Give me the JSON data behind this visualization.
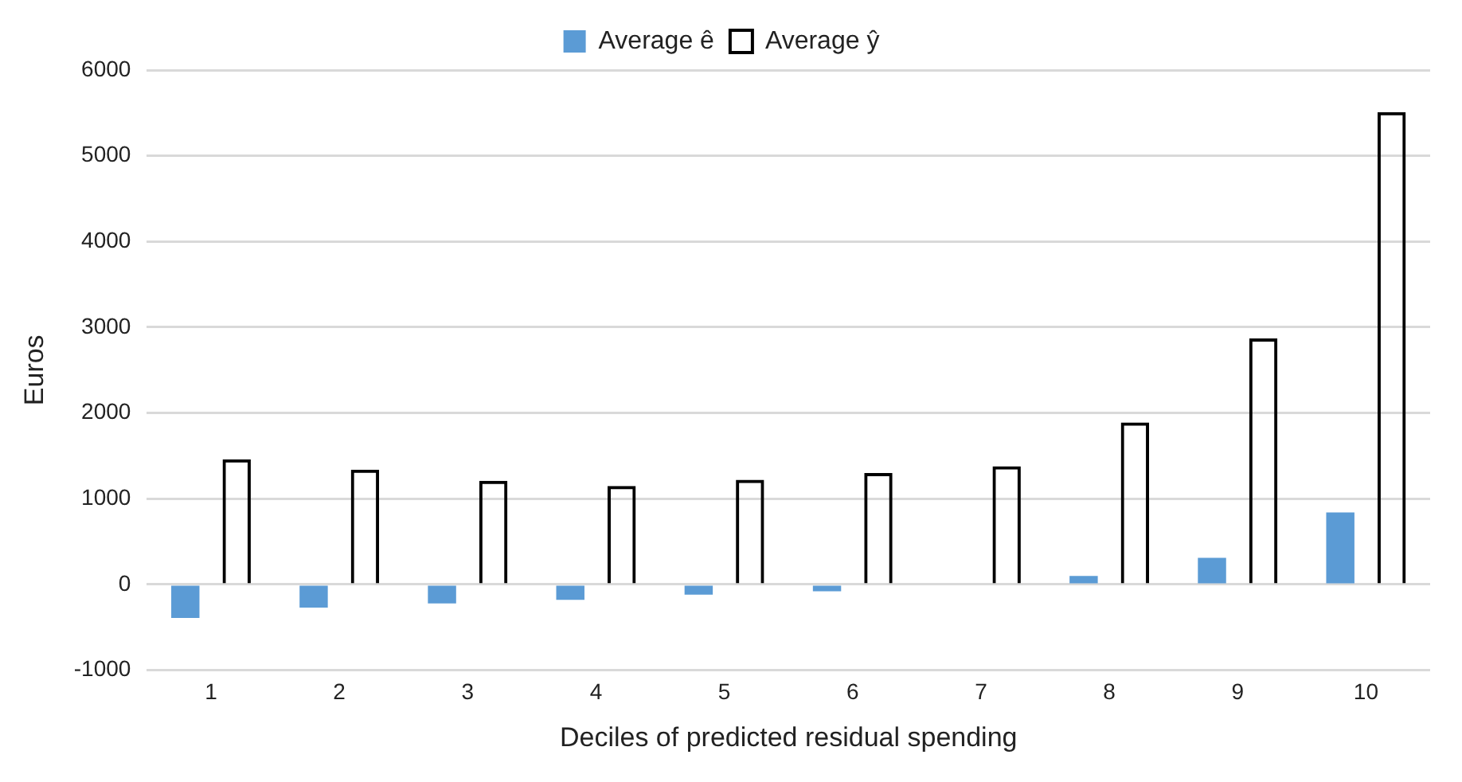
{
  "chart_data": {
    "type": "bar",
    "xlabel": "Deciles of predicted residual spending",
    "ylabel": "Euros",
    "categories": [
      "1",
      "2",
      "3",
      "4",
      "5",
      "6",
      "7",
      "8",
      "9",
      "10"
    ],
    "series": [
      {
        "name": "Average ê",
        "color": "#5b9bd5",
        "values": [
          -390,
          -270,
          -220,
          -180,
          -120,
          -80,
          0,
          100,
          310,
          840
        ]
      },
      {
        "name": "Average ŷ",
        "color": "#000000",
        "values": [
          1460,
          1340,
          1210,
          1150,
          1220,
          1300,
          1380,
          1890,
          2870,
          5510
        ]
      }
    ],
    "ylim": [
      -1000,
      6000
    ],
    "yticks": [
      -1000,
      0,
      1000,
      2000,
      3000,
      4000,
      5000,
      6000
    ],
    "grid": "y",
    "legend": "top"
  }
}
